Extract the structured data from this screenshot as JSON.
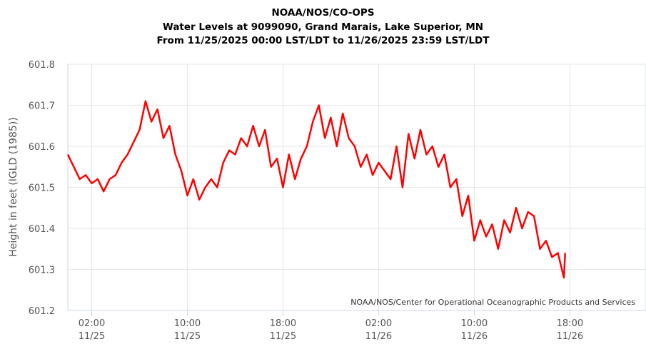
{
  "chart_data": {
    "type": "line",
    "title": [
      "NOAA/NOS/CO-OPS",
      "Water Levels at 9099090, Grand Marais, Lake Superior, MN",
      "From 11/25/2025 00:00 LST/LDT to 11/26/2025 23:59 LST/LDT"
    ],
    "ylabel": "Height in feet (IGLD (1985))",
    "xlabel": "",
    "credit": "NOAA/NOS/Center for Operational Oceanographic Products and Services",
    "ylim": [
      601.2,
      601.8
    ],
    "yticks": [
      "601.2",
      "601.3",
      "601.4",
      "601.5",
      "601.6",
      "601.7",
      "601.8"
    ],
    "xlim": [
      "2025-11-25T00:00",
      "2025-11-27T00:22"
    ],
    "xticks": [
      {
        "t": "2025-11-25T02:00",
        "time": "02:00",
        "date": "11/25"
      },
      {
        "t": "2025-11-25T10:00",
        "time": "10:00",
        "date": "11/25"
      },
      {
        "t": "2025-11-25T18:00",
        "time": "18:00",
        "date": "11/25"
      },
      {
        "t": "2025-11-26T02:00",
        "time": "02:00",
        "date": "11/26"
      },
      {
        "t": "2025-11-26T10:00",
        "time": "10:00",
        "date": "11/26"
      },
      {
        "t": "2025-11-26T18:00",
        "time": "18:00",
        "date": "11/26"
      }
    ],
    "grid": true,
    "line_color": "#ff0000",
    "series": [
      {
        "points": [
          [
            "2025-11-25T00:00",
            601.58
          ],
          [
            "2025-11-25T00:30",
            601.55
          ],
          [
            "2025-11-25T01:00",
            601.52
          ],
          [
            "2025-11-25T01:30",
            601.53
          ],
          [
            "2025-11-25T02:00",
            601.51
          ],
          [
            "2025-11-25T02:30",
            601.52
          ],
          [
            "2025-11-25T03:00",
            601.49
          ],
          [
            "2025-11-25T03:30",
            601.52
          ],
          [
            "2025-11-25T04:00",
            601.53
          ],
          [
            "2025-11-25T04:30",
            601.56
          ],
          [
            "2025-11-25T05:00",
            601.58
          ],
          [
            "2025-11-25T05:30",
            601.61
          ],
          [
            "2025-11-25T06:00",
            601.64
          ],
          [
            "2025-11-25T06:30",
            601.71
          ],
          [
            "2025-11-25T07:00",
            601.66
          ],
          [
            "2025-11-25T07:30",
            601.69
          ],
          [
            "2025-11-25T08:00",
            601.62
          ],
          [
            "2025-11-25T08:30",
            601.65
          ],
          [
            "2025-11-25T09:00",
            601.58
          ],
          [
            "2025-11-25T09:30",
            601.54
          ],
          [
            "2025-11-25T10:00",
            601.48
          ],
          [
            "2025-11-25T10:30",
            601.52
          ],
          [
            "2025-11-25T11:00",
            601.47
          ],
          [
            "2025-11-25T11:30",
            601.5
          ],
          [
            "2025-11-25T12:00",
            601.52
          ],
          [
            "2025-11-25T12:30",
            601.5
          ],
          [
            "2025-11-25T13:00",
            601.56
          ],
          [
            "2025-11-25T13:30",
            601.59
          ],
          [
            "2025-11-25T14:00",
            601.58
          ],
          [
            "2025-11-25T14:30",
            601.62
          ],
          [
            "2025-11-25T15:00",
            601.6
          ],
          [
            "2025-11-25T15:30",
            601.65
          ],
          [
            "2025-11-25T16:00",
            601.6
          ],
          [
            "2025-11-25T16:30",
            601.64
          ],
          [
            "2025-11-25T17:00",
            601.55
          ],
          [
            "2025-11-25T17:30",
            601.57
          ],
          [
            "2025-11-25T18:00",
            601.5
          ],
          [
            "2025-11-25T18:30",
            601.58
          ],
          [
            "2025-11-25T19:00",
            601.52
          ],
          [
            "2025-11-25T19:30",
            601.57
          ],
          [
            "2025-11-25T20:00",
            601.6
          ],
          [
            "2025-11-25T20:30",
            601.66
          ],
          [
            "2025-11-25T21:00",
            601.7
          ],
          [
            "2025-11-25T21:30",
            601.62
          ],
          [
            "2025-11-25T22:00",
            601.67
          ],
          [
            "2025-11-25T22:30",
            601.6
          ],
          [
            "2025-11-25T23:00",
            601.68
          ],
          [
            "2025-11-25T23:30",
            601.62
          ],
          [
            "2025-11-26T00:00",
            601.6
          ],
          [
            "2025-11-26T00:30",
            601.55
          ],
          [
            "2025-11-26T01:00",
            601.58
          ],
          [
            "2025-11-26T01:30",
            601.53
          ],
          [
            "2025-11-26T02:00",
            601.56
          ],
          [
            "2025-11-26T02:30",
            601.54
          ],
          [
            "2025-11-26T03:00",
            601.52
          ],
          [
            "2025-11-26T03:30",
            601.6
          ],
          [
            "2025-11-26T04:00",
            601.5
          ],
          [
            "2025-11-26T04:30",
            601.63
          ],
          [
            "2025-11-26T05:00",
            601.57
          ],
          [
            "2025-11-26T05:30",
            601.64
          ],
          [
            "2025-11-26T06:00",
            601.58
          ],
          [
            "2025-11-26T06:30",
            601.6
          ],
          [
            "2025-11-26T07:00",
            601.55
          ],
          [
            "2025-11-26T07:30",
            601.58
          ],
          [
            "2025-11-26T08:00",
            601.5
          ],
          [
            "2025-11-26T08:30",
            601.52
          ],
          [
            "2025-11-26T09:00",
            601.43
          ],
          [
            "2025-11-26T09:30",
            601.48
          ],
          [
            "2025-11-26T10:00",
            601.37
          ],
          [
            "2025-11-26T10:30",
            601.42
          ],
          [
            "2025-11-26T11:00",
            601.38
          ],
          [
            "2025-11-26T11:30",
            601.41
          ],
          [
            "2025-11-26T12:00",
            601.35
          ],
          [
            "2025-11-26T12:30",
            601.42
          ],
          [
            "2025-11-26T13:00",
            601.39
          ],
          [
            "2025-11-26T13:30",
            601.45
          ],
          [
            "2025-11-26T14:00",
            601.4
          ],
          [
            "2025-11-26T14:30",
            601.44
          ],
          [
            "2025-11-26T15:00",
            601.43
          ],
          [
            "2025-11-26T15:30",
            601.35
          ],
          [
            "2025-11-26T16:00",
            601.37
          ],
          [
            "2025-11-26T16:30",
            601.33
          ],
          [
            "2025-11-26T17:00",
            601.34
          ],
          [
            "2025-11-26T17:30",
            601.28
          ],
          [
            "2025-11-26T17:36",
            601.34
          ]
        ]
      }
    ]
  }
}
